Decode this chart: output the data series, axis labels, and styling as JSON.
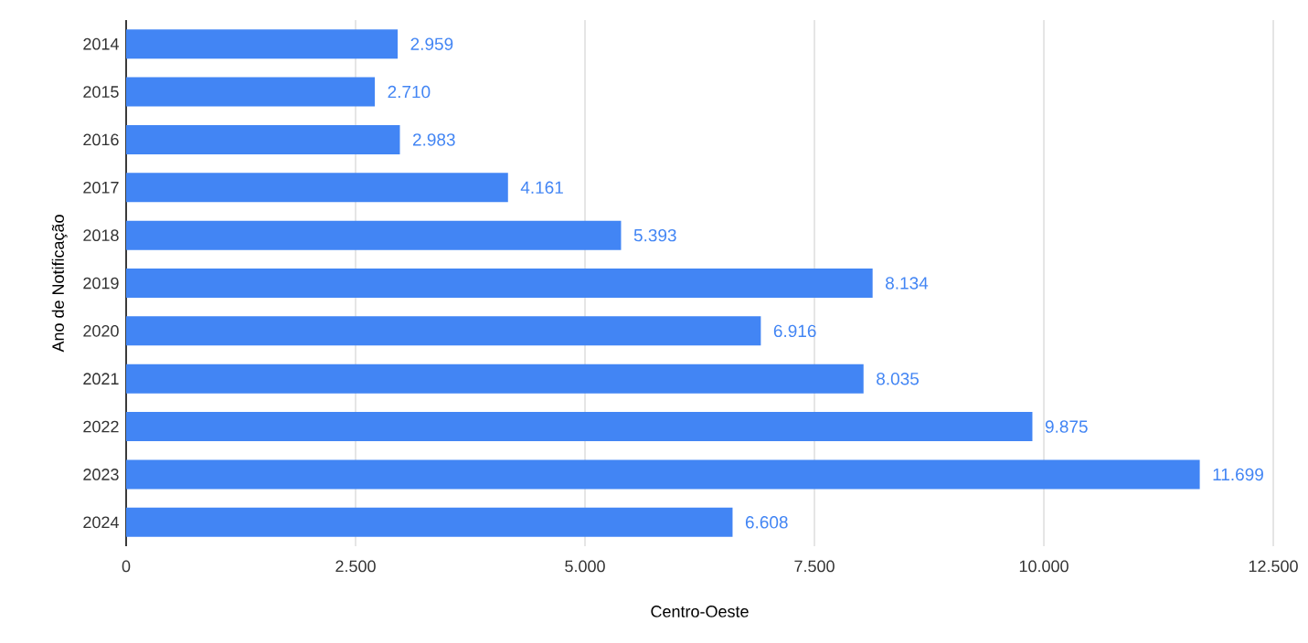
{
  "chart_data": {
    "type": "bar",
    "orientation": "horizontal",
    "xlabel": "Centro-Oeste",
    "ylabel": "Ano de Notificação",
    "categories": [
      "2014",
      "2015",
      "2016",
      "2017",
      "2018",
      "2019",
      "2020",
      "2021",
      "2022",
      "2023",
      "2024"
    ],
    "values": [
      2959,
      2710,
      2983,
      4161,
      5393,
      8134,
      6916,
      8035,
      9875,
      11699,
      6608
    ],
    "value_labels": [
      "2.959",
      "2.710",
      "2.983",
      "4.161",
      "5.393",
      "8.134",
      "6.916",
      "8.035",
      "9.875",
      "11.699",
      "6.608"
    ],
    "color": "#4285f4",
    "xlim": [
      0,
      12500
    ],
    "xticks": [
      0,
      {
        "value": 2500,
        "label": "2.500"
      },
      {
        "value": 5000,
        "label": "5.000"
      },
      {
        "value": 7500,
        "label": "7.500"
      },
      {
        "value": 10000,
        "label": "10.000"
      },
      {
        "value": 12500,
        "label": "12.500"
      }
    ],
    "grid": "x"
  }
}
